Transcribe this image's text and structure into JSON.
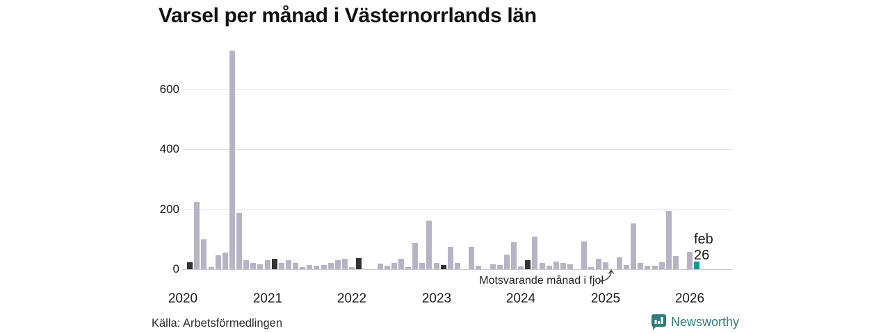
{
  "title": "Varsel per månad i Västernorrlands län",
  "source": "Källa: Arbetsförmedlingen",
  "branding": {
    "name": "Newsworthy",
    "logo_icon": "bar-chart-bubble-icon"
  },
  "annotations": {
    "last_year_label": "Motsvarande månad i fjol",
    "current_month_line1": "feb",
    "current_month_line2": "26"
  },
  "colors": {
    "bar": "#b6b4c4",
    "highlight_last_year": "#333333",
    "highlight_current": "#0f9b8c",
    "grid": "#dedede",
    "axis_line": "#c9c9c9",
    "brand_teal": "#2f7e79"
  },
  "y_axis": {
    "ticks": [
      0,
      200,
      400,
      600
    ]
  },
  "x_axis": {
    "ticks": [
      "2020",
      "2021",
      "2022",
      "2023",
      "2024",
      "2025",
      "2026"
    ]
  },
  "chart_data": {
    "type": "bar",
    "title": "Varsel per månad i Västernorrlands län",
    "xlabel": "",
    "ylabel": "",
    "ylim": [
      0,
      750
    ],
    "grid": "horizontal",
    "gridlines": [
      200,
      400,
      600
    ],
    "x": [
      "2020-01",
      "2020-02",
      "2020-03",
      "2020-04",
      "2020-05",
      "2020-06",
      "2020-07",
      "2020-08",
      "2020-09",
      "2020-10",
      "2020-11",
      "2020-12",
      "2021-01",
      "2021-02",
      "2021-03",
      "2021-04",
      "2021-05",
      "2021-06",
      "2021-07",
      "2021-08",
      "2021-09",
      "2021-10",
      "2021-11",
      "2021-12",
      "2022-01",
      "2022-02",
      "2022-03",
      "2022-04",
      "2022-05",
      "2022-06",
      "2022-07",
      "2022-08",
      "2022-09",
      "2022-10",
      "2022-11",
      "2022-12",
      "2023-01",
      "2023-02",
      "2023-03",
      "2023-04",
      "2023-05",
      "2023-06",
      "2023-07",
      "2023-08",
      "2023-09",
      "2023-10",
      "2023-11",
      "2023-12",
      "2024-01",
      "2024-02",
      "2024-03",
      "2024-04",
      "2024-05",
      "2024-06",
      "2024-07",
      "2024-08",
      "2024-09",
      "2024-10",
      "2024-11",
      "2024-12",
      "2025-01",
      "2025-02",
      "2025-03",
      "2025-04",
      "2025-05",
      "2025-06",
      "2025-07",
      "2025-08",
      "2025-09",
      "2025-10",
      "2025-11",
      "2025-12",
      "2026-01",
      "2026-02"
    ],
    "values": [
      0,
      24,
      225,
      100,
      8,
      47,
      56,
      730,
      188,
      30,
      22,
      16,
      29,
      35,
      22,
      31,
      20,
      6,
      14,
      12,
      14,
      22,
      29,
      35,
      8,
      38,
      0,
      0,
      19,
      11,
      21,
      35,
      7,
      87,
      21,
      163,
      21,
      14,
      75,
      21,
      0,
      73,
      12,
      0,
      17,
      14,
      48,
      90,
      10,
      30,
      110,
      21,
      11,
      25,
      22,
      17,
      0,
      92,
      8,
      34,
      23,
      0,
      39,
      15,
      152,
      22,
      11,
      11,
      24,
      195,
      43,
      0,
      57,
      26
    ],
    "highlight_last_year_months": [
      "2020-02",
      "2021-02",
      "2022-02",
      "2023-02",
      "2024-02",
      "2025-02"
    ],
    "current_month": "2026-02",
    "legend": "none"
  }
}
